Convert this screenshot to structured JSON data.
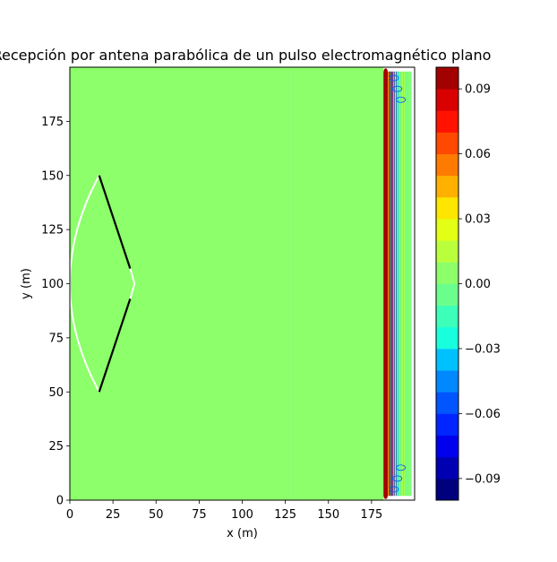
{
  "chart_data": {
    "type": "heatmap",
    "title": "Recepción por antena parabólica de un pulso electromagnético plano",
    "xlabel": "x (m)",
    "ylabel": "y (m)",
    "xlim": [
      0,
      200
    ],
    "ylim": [
      0,
      200
    ],
    "xticks": [
      0,
      25,
      50,
      75,
      100,
      125,
      150,
      175
    ],
    "yticks": [
      0,
      25,
      50,
      75,
      100,
      125,
      150,
      175
    ],
    "grid": false,
    "regions": [
      {
        "x_from": 0,
        "x_to": 128,
        "level": 0.0
      },
      {
        "x_from": 128,
        "x_to": 182,
        "level": 0.005
      }
    ],
    "pulse": {
      "x_from": 182,
      "x_to": 198,
      "min": -0.1,
      "max": 0.1
    },
    "antenna": {
      "upper_arm": [
        [
          17,
          150
        ],
        [
          35,
          107
        ]
      ],
      "lower_arm": [
        [
          17,
          50
        ],
        [
          35,
          93
        ]
      ],
      "tip": [
        [
          35,
          107
        ],
        [
          37.5,
          100
        ],
        [
          35,
          93
        ]
      ],
      "reflector_arc": {
        "ends": [
          [
            17,
            150
          ],
          [
            17,
            50
          ]
        ],
        "apex_x": 0
      }
    },
    "colorbar": {
      "levels": [
        -0.1,
        -0.09,
        -0.08,
        -0.07,
        -0.06,
        -0.05,
        -0.04,
        -0.03,
        -0.02,
        -0.01,
        0.0,
        0.01,
        0.02,
        0.03,
        0.04,
        0.05,
        0.06,
        0.07,
        0.08,
        0.09,
        0.1
      ],
      "ticks": [
        -0.09,
        -0.06,
        -0.03,
        0.0,
        0.03,
        0.06,
        0.09
      ],
      "tick_labels": [
        "−0.09",
        "−0.06",
        "−0.03",
        "0.00",
        "0.03",
        "0.06",
        "0.09"
      ],
      "colors": [
        "#00007f",
        "#0000b2",
        "#0000ee",
        "#0025ff",
        "#0055ff",
        "#0089ff",
        "#00c1ff",
        "#18ffde",
        "#3cffba",
        "#6aff8c",
        "#8cff6a",
        "#baff3c",
        "#e2ff15",
        "#ffe600",
        "#ffb000",
        "#ff7a00",
        "#ff4800",
        "#ff1300",
        "#d90000",
        "#a30000"
      ]
    }
  }
}
